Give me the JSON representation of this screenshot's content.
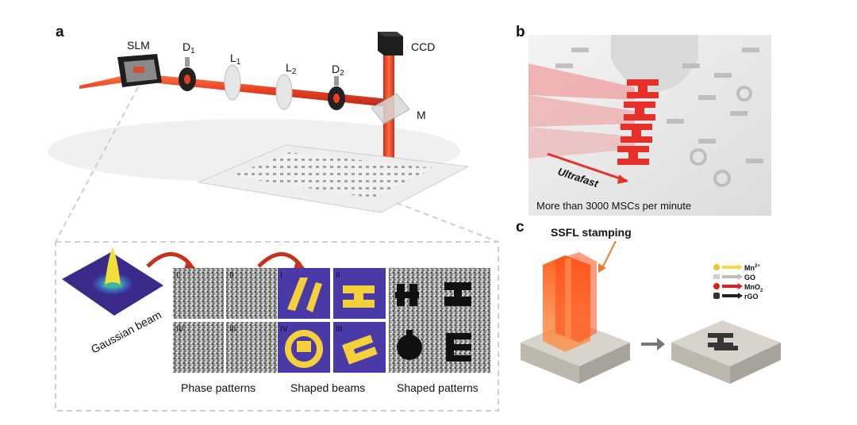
{
  "panel_a": {
    "letter": "a",
    "labels": {
      "slm": "SLM",
      "d1": "D",
      "d1_sub": "1",
      "l1": "L",
      "l1_sub": "1",
      "l2": "L",
      "l2_sub": "2",
      "d2": "D",
      "d2_sub": "2",
      "ccd": "CCD",
      "m": "M"
    },
    "inset": {
      "gaussian_label": "Gaussian beam",
      "phase_caption": "Phase patterns",
      "shaped_beams_caption": "Shaped beams",
      "shaped_patterns_caption": "Shaped patterns",
      "phase_numerals": [
        "I",
        "II",
        "IV",
        "III"
      ],
      "beam_numerals": [
        "I",
        "II",
        "IV",
        "III"
      ]
    }
  },
  "panel_b": {
    "letter": "b",
    "ultrafast": "Ultrafast",
    "caption": "More than 3000 MSCs per minute"
  },
  "panel_c": {
    "letter": "c",
    "stamping": "SSFL stamping",
    "legend": [
      {
        "label": "Mn",
        "sup": "2+",
        "dot": "#f2c233",
        "arrow": "#f7d94a"
      },
      {
        "label": "GO",
        "sup": "",
        "dot": "#cfcfcf",
        "arrow": "#bdbdbd"
      },
      {
        "label": "MnO",
        "sub": "2",
        "dot": "#e01e1e",
        "arrow": "#e01e1e"
      },
      {
        "label": "rGO",
        "sup": "",
        "dot": "#333333",
        "arrow": "#222222"
      }
    ]
  },
  "colors": {
    "beam": "#f04a2a",
    "beam_dark": "#c9301c",
    "accent_red": "#e23a2c",
    "orange": "#f07a2a",
    "purple": "#4a3aa8",
    "yellow": "#f4d13a"
  }
}
